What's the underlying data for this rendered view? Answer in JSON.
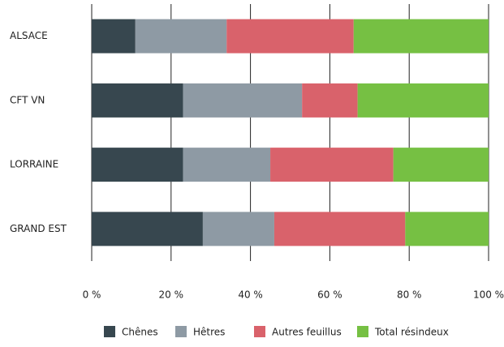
{
  "chart_data": {
    "type": "stacked_barh",
    "categories": [
      "ALSACE",
      "CFT VN",
      "LORRAINE",
      "GRAND EST"
    ],
    "series": [
      {
        "name": "Chênes",
        "color": "#37474f",
        "values": [
          11,
          23,
          23,
          28
        ]
      },
      {
        "name": "Hêtres",
        "color": "#8e9aa4",
        "values": [
          23,
          30,
          22,
          18
        ]
      },
      {
        "name": "Autres feuillus",
        "color": "#d9626b",
        "values": [
          32,
          14,
          31,
          33
        ]
      },
      {
        "name": "Total résindeux",
        "color": "#76c043",
        "values": [
          34,
          33,
          24,
          21
        ]
      }
    ],
    "xlim": [
      0,
      100
    ],
    "xticks": [
      {
        "value": 0,
        "label": "0 %"
      },
      {
        "value": 20,
        "label": "20 %"
      },
      {
        "value": 40,
        "label": "40 %"
      },
      {
        "value": 60,
        "label": "60 %"
      },
      {
        "value": 80,
        "label": "80 %"
      },
      {
        "value": 100,
        "label": "100 %"
      }
    ],
    "grid": true,
    "legend": "bottom"
  }
}
